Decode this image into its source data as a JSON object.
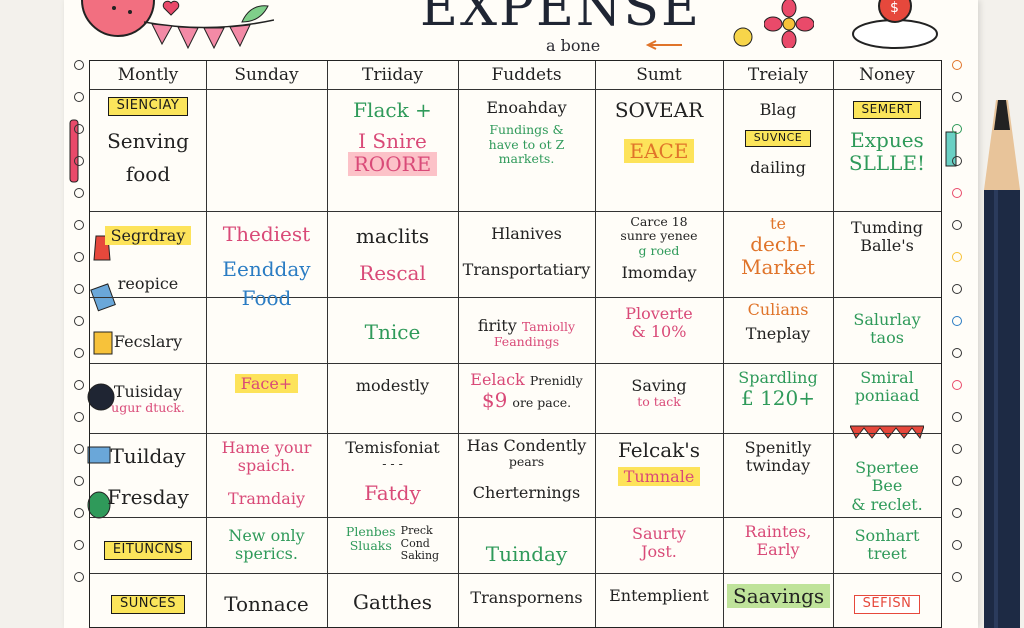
{
  "title": "EXPENSE",
  "subtitle": "a bone",
  "columns": [
    "Montly",
    "Sunday",
    "Triiday",
    "Fuddets",
    "Sumt",
    "Treialy",
    "Noney"
  ],
  "rows": [
    {
      "c0_tag": "SIENCIAY",
      "c0_a": "Senving",
      "c0_b": "food",
      "c1": "",
      "c2_a": "Flack +",
      "c2_b": "I Snire",
      "c2_c": "ROORE",
      "c3_a": "Enoahday",
      "c3_b": "Fundings &",
      "c3_c": "have to ot Z",
      "c3_d": "markets.",
      "c4_a": "SOVEAR",
      "c4_b": "EACE",
      "c5_a": "Blag",
      "c5_tag": "SUVNCE",
      "c5_b": "dailing",
      "c6_tag": "SEMERT",
      "c6_a": "Expues",
      "c6_b": "SLLLE!"
    },
    {
      "c0_a": "Segrdray",
      "c0_b": "reopice",
      "c1_a": "Thediest",
      "c1_b": "Eendday",
      "c1_c": "Food",
      "c2_a": "maclits",
      "c2_b": "Rescal",
      "c3_a": "Hlanives",
      "c3_b": "Transportatiary",
      "c4_a": "Carce 18",
      "c4_b": "sunre yenee",
      "c4_c": "g roed",
      "c4_d": "Imomday",
      "c5_a": "te",
      "c5_b": "dech-",
      "c5_c": "Market",
      "c6_a": "Tumding",
      "c6_b": "Balle's"
    },
    {
      "c0_a": "Fecslary",
      "c2_a": "Tnice",
      "c3_a": "firity",
      "c3_b": "Tamiolly",
      "c3_c": "Feandings",
      "c4_a": "Ploverte",
      "c4_b": "& 10%",
      "c5_a": "Culians",
      "c5_b": "Tneplay",
      "c6_a": "Salurlay",
      "c6_b": "taos"
    },
    {
      "c0_a": "Tuisiday",
      "c0_b": "ugur dtuck.",
      "c1_a": "Face+",
      "c2_a": "modestly",
      "c3_a": "Eelack",
      "c3_b": "Prenidly",
      "c3_c": "$9",
      "c3_d": "ore pace.",
      "c4_a": "Saving",
      "c4_b": "to tack",
      "c5_a": "Spardling",
      "c5_b": "£ 120+",
      "c6_a": "Smiral",
      "c6_b": "poniaad"
    },
    {
      "c0_a": "Tuilday",
      "c0_b": "Fresday",
      "c1_a": "Hame your",
      "c1_b": "spaich.",
      "c1_c": "Tramdaiy",
      "c2_a": "Temisfoniat",
      "c2_b": "- - -",
      "c2_c": "Fatdy",
      "c3_a": "Has Condently",
      "c3_b": "pears",
      "c3_c": "Cherternings",
      "c4_a": "Felcak's",
      "c4_b": "Tumnale",
      "c5_a": "Spenitly",
      "c5_b": "twinday",
      "c6_a": "Spertee",
      "c6_b": "Bee",
      "c6_c": "& reclet."
    },
    {
      "c0_tag": "EITUNCNS",
      "c1_a": "New only",
      "c1_b": "sperics.",
      "c2_a": "Plenbes",
      "c2_b": "Sluaks",
      "c2_c": "Preck",
      "c2_d": "Cond",
      "c2_e": "Saking",
      "c3_a": "Tuinday",
      "c4_a": "Saurty",
      "c4_b": "Jost.",
      "c5_a": "Raintes,",
      "c5_b": "Early",
      "c6_a": "Sonhart",
      "c6_b": "treet"
    },
    {
      "c0_tag": "SUNCES",
      "c1_a": "Tonnace",
      "c2_a": "Gatthes",
      "c3_a": "Transpornens",
      "c4_a": "Entemplient",
      "c5_a": "Saavings",
      "c6_tag": "SEFISN"
    }
  ],
  "colors": {
    "pink": "#d94a78",
    "green": "#2f9a5a",
    "blue": "#2a7cc3",
    "orange": "#e0742a",
    "yellow": "#fde35a"
  },
  "icons": [
    "watermelon-icon",
    "bunting-icon",
    "flower-icon",
    "jar-icon",
    "pencil-icon",
    "scissors-icon",
    "lamp-icon",
    "tape-icon",
    "calculator-icon",
    "bug-icon",
    "ruler-icon"
  ]
}
